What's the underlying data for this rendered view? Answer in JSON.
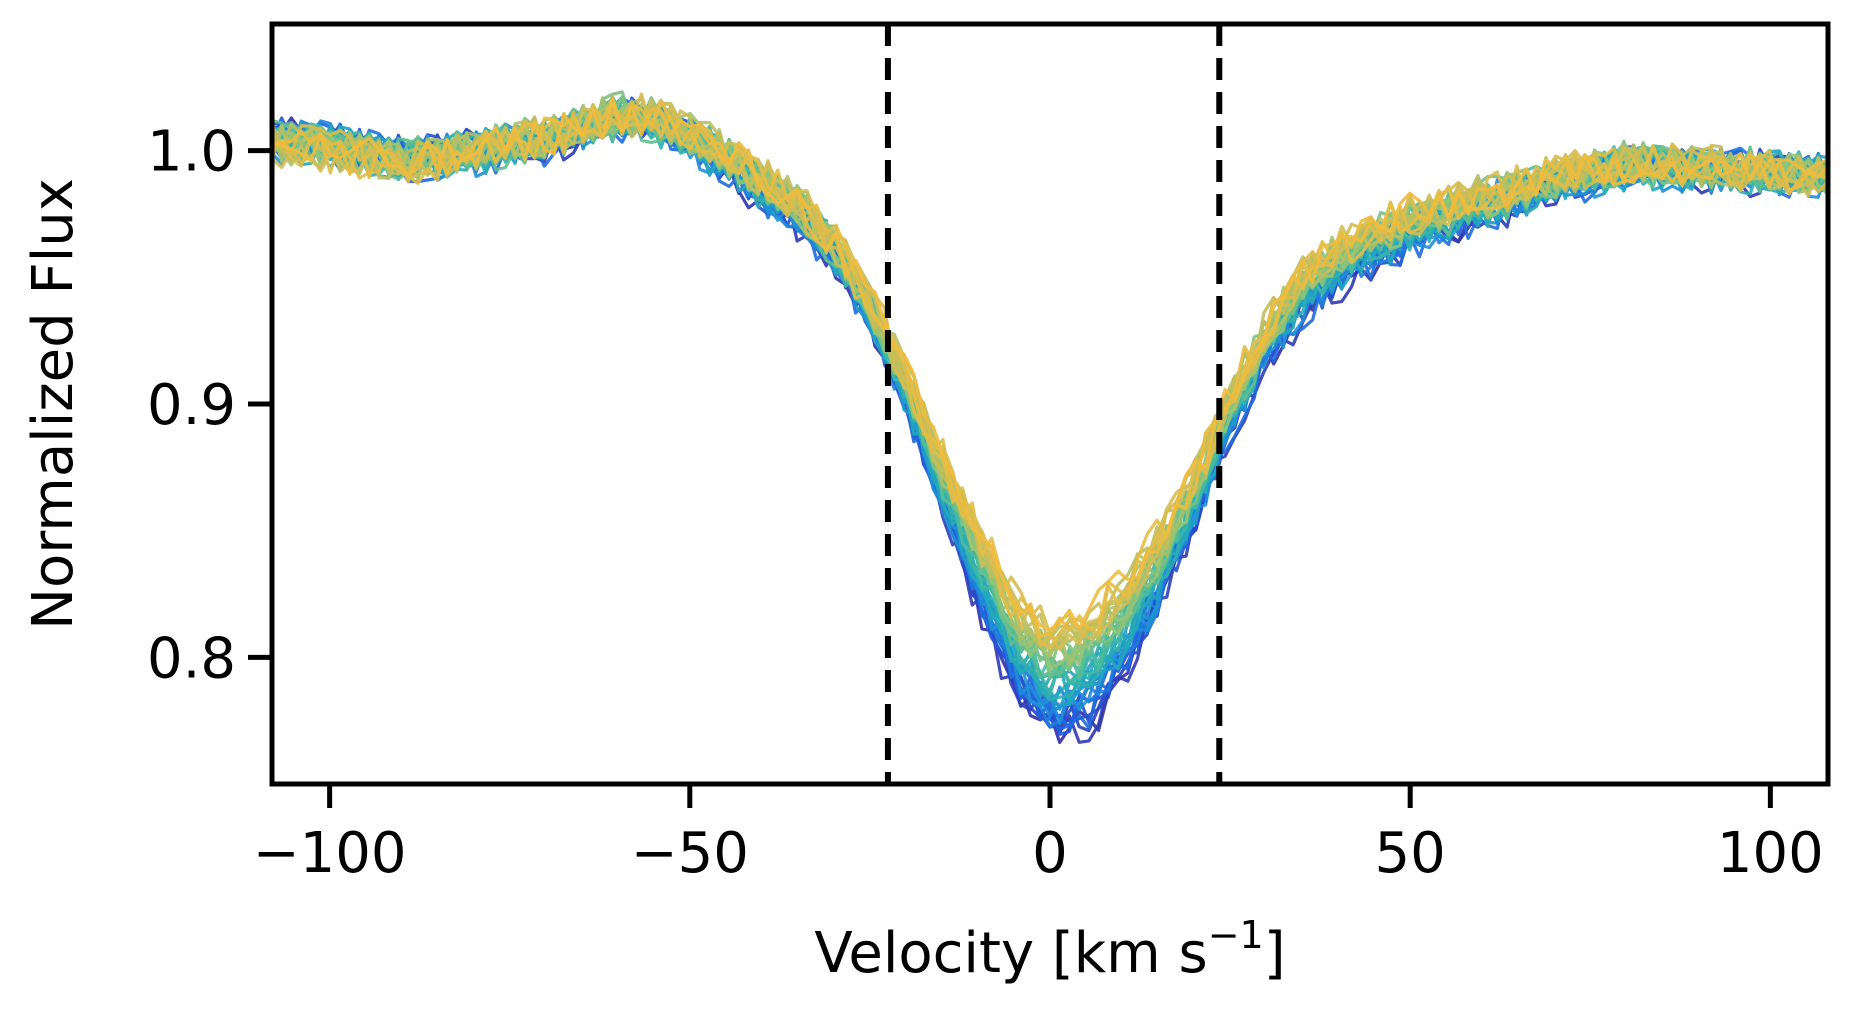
{
  "chart_data": {
    "type": "line",
    "title": "",
    "xlabel": {
      "text": "Velocity [km s",
      "superscript": "−1",
      "suffix": "]"
    },
    "ylabel": "Normalized Flux",
    "xlim": [
      -108,
      108
    ],
    "ylim": [
      0.75,
      1.05
    ],
    "x_ticks": [
      -100,
      -50,
      0,
      50,
      100
    ],
    "x_tick_labels": [
      "−100",
      "−50",
      "0",
      "50",
      "100"
    ],
    "y_ticks": [
      0.8,
      0.9,
      1.0
    ],
    "y_tick_labels": [
      "0.8",
      "0.9",
      "1.0"
    ],
    "grid": false,
    "legend": "none",
    "vlines": [
      {
        "x": -22.5,
        "style": "dashed",
        "color": "#000000"
      },
      {
        "x": 23.5,
        "style": "dashed",
        "color": "#000000"
      }
    ],
    "colormap": [
      "#3030a8",
      "#1f5ee0",
      "#1f8fd8",
      "#22aab8",
      "#4cbc9a",
      "#8cc47a",
      "#c4be5c",
      "#f0bb3e"
    ],
    "n_series": 40,
    "profile": {
      "x": [
        -108,
        -100,
        -90,
        -80,
        -70,
        -60,
        -55,
        -50,
        -45,
        -40,
        -35,
        -30,
        -25,
        -20,
        -15,
        -10,
        -5,
        0,
        5,
        10,
        15,
        20,
        25,
        30,
        35,
        40,
        45,
        50,
        60,
        70,
        80,
        90,
        100,
        108
      ],
      "first_series_y": [
        1.005,
        1.003,
        0.996,
        0.999,
        1.003,
        1.012,
        1.01,
        1.003,
        0.993,
        0.982,
        0.973,
        0.958,
        0.935,
        0.9,
        0.86,
        0.822,
        0.788,
        0.77,
        0.772,
        0.79,
        0.82,
        0.853,
        0.89,
        0.918,
        0.936,
        0.948,
        0.957,
        0.964,
        0.975,
        0.985,
        0.993,
        0.992,
        0.991,
        0.99
      ],
      "last_series_y": [
        1.002,
        1.0,
        0.995,
        1.0,
        1.006,
        1.015,
        1.013,
        1.008,
        1.0,
        0.99,
        0.98,
        0.965,
        0.942,
        0.912,
        0.88,
        0.85,
        0.825,
        0.812,
        0.816,
        0.83,
        0.848,
        0.872,
        0.905,
        0.932,
        0.952,
        0.963,
        0.97,
        0.976,
        0.983,
        0.99,
        0.996,
        0.994,
        0.992,
        0.99
      ]
    }
  }
}
